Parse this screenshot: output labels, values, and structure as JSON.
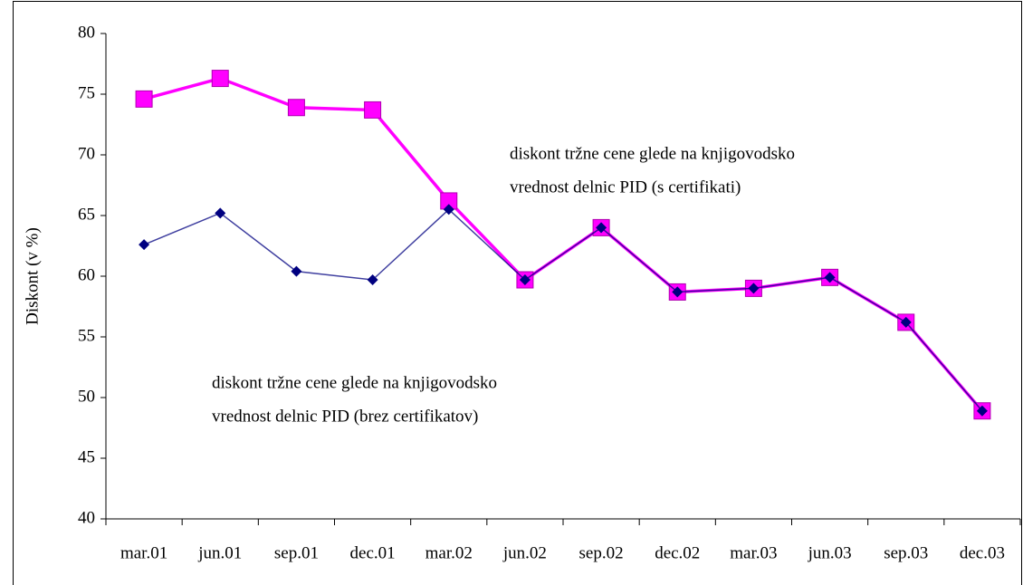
{
  "chart_data": {
    "type": "line",
    "y_label": "Diskont (v %)",
    "categories": [
      "mar.01",
      "jun.01",
      "sep.01",
      "dec.01",
      "mar.02",
      "jun.02",
      "sep.02",
      "dec.02",
      "mar.03",
      "jun.03",
      "sep.03",
      "dec.03"
    ],
    "series": [
      {
        "color": "#ff00ff",
        "marker": "square",
        "values": [
          74.6,
          76.3,
          73.9,
          73.7,
          66.2,
          59.7,
          64.0,
          58.7,
          59.0,
          59.9,
          56.2,
          48.9
        ]
      },
      {
        "color": "#000080",
        "marker": "diamond",
        "values": [
          62.6,
          65.2,
          60.4,
          59.7,
          65.5,
          59.7,
          64.0,
          58.7,
          59.0,
          59.9,
          56.2,
          48.9
        ]
      }
    ],
    "annotations": [
      {
        "lines": [
          "diskont tržne cene glede na knjigovodsko",
          "vrednost delnic PID (s certifikati)"
        ]
      },
      {
        "lines": [
          "diskont tržne cene glede na knjigovodsko",
          "vrednost delnic PID (brez certifikatov)"
        ]
      }
    ],
    "ylim": [
      40,
      80
    ],
    "yticks": [
      40,
      45,
      50,
      55,
      60,
      65,
      70,
      75,
      80
    ],
    "grid": false
  }
}
